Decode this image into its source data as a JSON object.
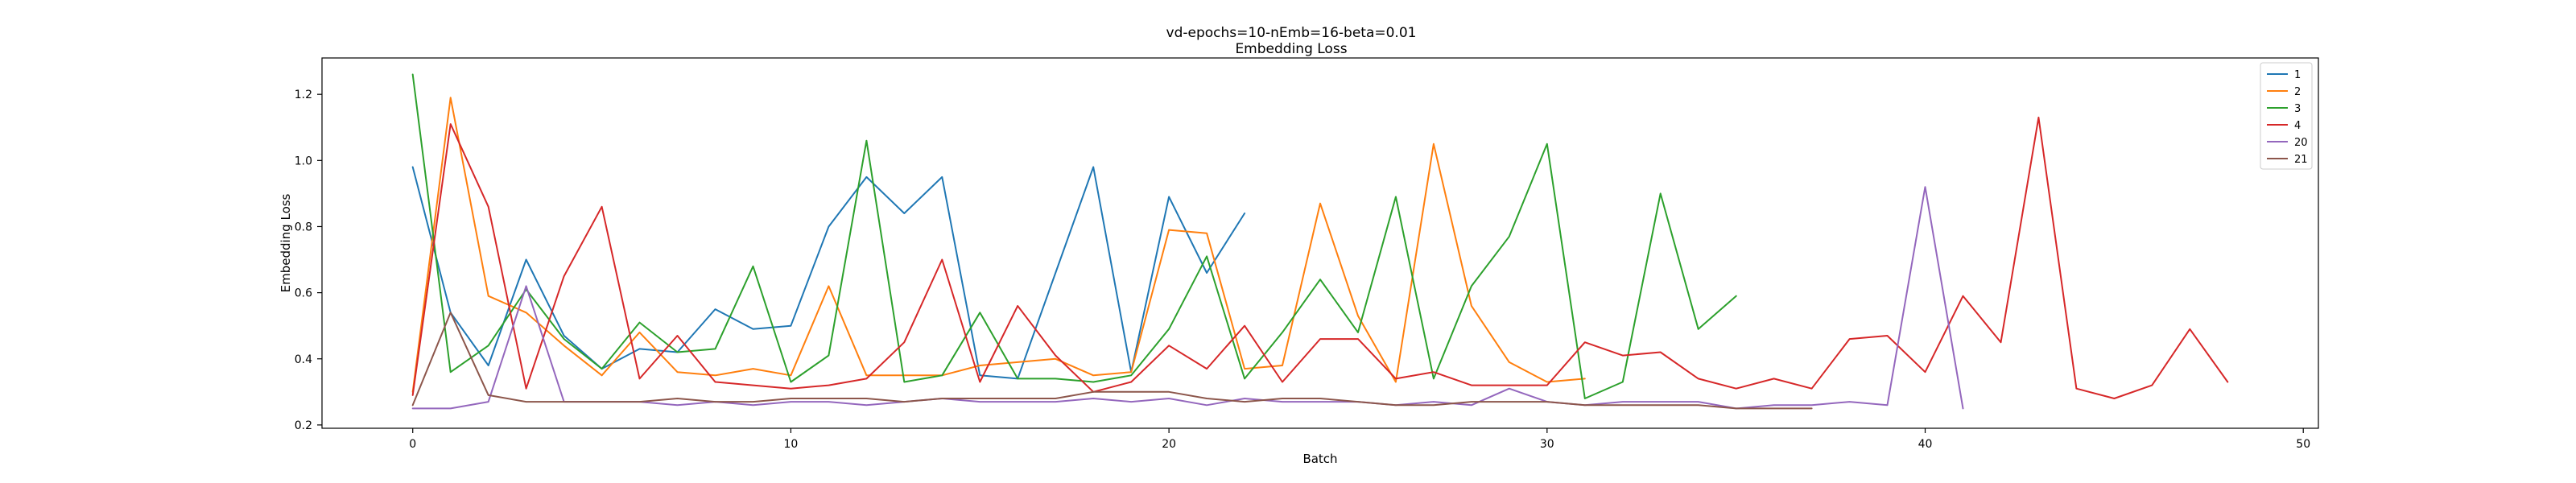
{
  "chart_data": {
    "type": "line",
    "title": "vd-epochs=10-nEmb=16-beta=0.01",
    "subtitle": "Embedding Loss",
    "xlabel": "Batch",
    "ylabel": "Embedding Loss",
    "xlim": [
      -2.4,
      50.4
    ],
    "ylim": [
      0.19,
      1.31
    ],
    "xticks": [
      0,
      10,
      20,
      30,
      40,
      50
    ],
    "yticks": [
      0.2,
      0.4,
      0.6,
      0.8,
      1.0,
      1.2
    ],
    "grid": false,
    "legend_position": "top-right",
    "series": [
      {
        "name": "1",
        "color": "#1f77b4",
        "values": [
          0.98,
          0.54,
          0.38,
          0.7,
          0.47,
          0.37,
          0.43,
          0.42,
          0.55,
          0.49,
          0.5,
          0.8,
          0.95,
          0.84,
          0.95,
          0.35,
          0.34,
          0.66,
          0.98,
          0.36,
          0.89,
          0.66,
          0.84
        ]
      },
      {
        "name": "2",
        "color": "#ff7f0e",
        "values": [
          0.3,
          1.19,
          0.59,
          0.54,
          0.44,
          0.35,
          0.48,
          0.36,
          0.35,
          0.37,
          0.35,
          0.62,
          0.35,
          0.35,
          0.35,
          0.38,
          0.39,
          0.4,
          0.35,
          0.36,
          0.79,
          0.78,
          0.37,
          0.38,
          0.87,
          0.53,
          0.33,
          1.05,
          0.56,
          0.39,
          0.33,
          0.34
        ]
      },
      {
        "name": "3",
        "color": "#2ca02c",
        "values": [
          1.26,
          0.36,
          0.44,
          0.61,
          0.46,
          0.37,
          0.51,
          0.42,
          0.43,
          0.68,
          0.33,
          0.41,
          1.06,
          0.33,
          0.35,
          0.54,
          0.34,
          0.34,
          0.33,
          0.35,
          0.49,
          0.71,
          0.34,
          0.48,
          0.64,
          0.48,
          0.89,
          0.34,
          0.62,
          0.77,
          1.05,
          0.28,
          0.33,
          0.9,
          0.49,
          0.59
        ]
      },
      {
        "name": "4",
        "color": "#d62728",
        "values": [
          0.29,
          1.11,
          0.86,
          0.31,
          0.65,
          0.86,
          0.34,
          0.47,
          0.33,
          0.32,
          0.31,
          0.32,
          0.34,
          0.45,
          0.7,
          0.33,
          0.56,
          0.41,
          0.3,
          0.33,
          0.44,
          0.37,
          0.5,
          0.33,
          0.46,
          0.46,
          0.34,
          0.36,
          0.32,
          0.32,
          0.32,
          0.45,
          0.41,
          0.42,
          0.34,
          0.31,
          0.34,
          0.31,
          0.46,
          0.47,
          0.36,
          0.59,
          0.45,
          1.13,
          0.31,
          0.28,
          0.32,
          0.49,
          0.33
        ]
      },
      {
        "name": "20",
        "color": "#9467bd",
        "values": [
          0.25,
          0.25,
          0.27,
          0.62,
          0.27,
          0.27,
          0.27,
          0.26,
          0.27,
          0.26,
          0.27,
          0.27,
          0.26,
          0.27,
          0.28,
          0.27,
          0.27,
          0.27,
          0.28,
          0.27,
          0.28,
          0.26,
          0.28,
          0.27,
          0.27,
          0.27,
          0.26,
          0.27,
          0.26,
          0.31,
          0.27,
          0.26,
          0.27,
          0.27,
          0.27,
          0.25,
          0.26,
          0.26,
          0.27,
          0.26,
          0.92,
          0.25
        ]
      },
      {
        "name": "21",
        "color": "#8c564b",
        "values": [
          0.26,
          0.54,
          0.29,
          0.27,
          0.27,
          0.27,
          0.27,
          0.28,
          0.27,
          0.27,
          0.28,
          0.28,
          0.28,
          0.27,
          0.28,
          0.28,
          0.28,
          0.28,
          0.3,
          0.3,
          0.3,
          0.28,
          0.27,
          0.28,
          0.28,
          0.27,
          0.26,
          0.26,
          0.27,
          0.27,
          0.27,
          0.26,
          0.26,
          0.26,
          0.26,
          0.25,
          0.25,
          0.25
        ]
      }
    ]
  }
}
